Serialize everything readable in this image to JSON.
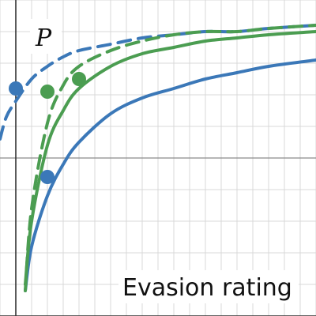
{
  "chart_data": {
    "type": "line",
    "title": "",
    "xlabel": "Evasion rating",
    "ylabel": "P",
    "xlim": [
      -0.5,
      9.5
    ],
    "ylim": [
      0,
      1
    ],
    "grid": true,
    "series": [
      {
        "color": "#3b78b8",
        "dash": "solid",
        "x": [
          0.3,
          0.5,
          1,
          1.5,
          2,
          3,
          4,
          5,
          6,
          7,
          8,
          9.5
        ],
        "y": [
          0.08,
          0.22,
          0.38,
          0.48,
          0.55,
          0.64,
          0.69,
          0.72,
          0.75,
          0.77,
          0.79,
          0.81
        ]
      },
      {
        "color": "#3b78b8",
        "dash": "dashed",
        "x": [
          -0.5,
          -0.3,
          0,
          0.5,
          1,
          1.5,
          2,
          3,
          4,
          5,
          6,
          7,
          8,
          9.5
        ],
        "y": [
          0.56,
          0.63,
          0.68,
          0.75,
          0.79,
          0.82,
          0.84,
          0.86,
          0.88,
          0.89,
          0.9,
          0.9,
          0.91,
          0.92
        ]
      },
      {
        "color": "#4b9d51",
        "dash": "solid",
        "x": [
          0.3,
          0.5,
          1,
          1.5,
          2,
          3,
          4,
          5,
          6,
          7,
          8,
          9.5
        ],
        "y": [
          0.1,
          0.3,
          0.54,
          0.65,
          0.72,
          0.79,
          0.83,
          0.85,
          0.87,
          0.88,
          0.89,
          0.9
        ]
      },
      {
        "color": "#4b9d51",
        "dash": "dashed",
        "x": [
          0.3,
          0.5,
          1,
          1.5,
          2,
          3,
          4,
          5,
          6,
          7,
          8,
          9.5
        ],
        "y": [
          0.08,
          0.34,
          0.61,
          0.73,
          0.79,
          0.84,
          0.87,
          0.89,
          0.9,
          0.9,
          0.91,
          0.92
        ]
      }
    ],
    "points": [
      {
        "x": 0,
        "y": 0.72,
        "color": "#3b78b8"
      },
      {
        "x": 1,
        "y": 0.44,
        "color": "#3b78b8"
      },
      {
        "x": 1,
        "y": 0.71,
        "color": "#4b9d51"
      },
      {
        "x": 2,
        "y": 0.75,
        "color": "#4b9d51"
      }
    ]
  }
}
